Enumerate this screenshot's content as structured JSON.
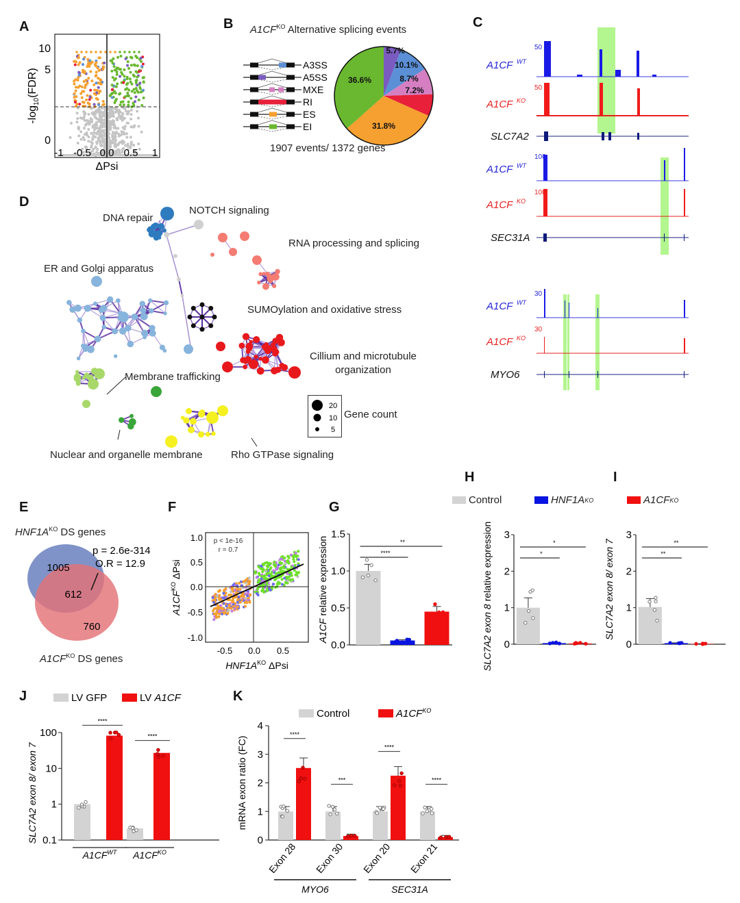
{
  "panels": {
    "A": {
      "label": "A",
      "xlabel": "ΔPsi",
      "ylabel": "-log10(FDR)",
      "yticks": [
        "0",
        "5",
        "10"
      ],
      "xticks": [
        "-1",
        "-0.5",
        "0.0",
        "0.5",
        "1"
      ]
    },
    "B": {
      "label": "B",
      "title_gene": "A1CF",
      "title_sup": "KO",
      "title_rest": " Alternative splicing events",
      "footer": "1907 events/ 1372 genes",
      "legend": [
        {
          "name": "A3SS",
          "color": "#5b8fd6"
        },
        {
          "name": "A5SS",
          "color": "#7a5cc0"
        },
        {
          "name": "MXE",
          "color": "#d57fc2"
        },
        {
          "name": "RI",
          "color": "#e8203a"
        },
        {
          "name": "ES",
          "color": "#f5a030"
        },
        {
          "name": "EI",
          "color": "#69b82f"
        }
      ]
    },
    "C": {
      "label": "C",
      "tracks": [
        {
          "gene": "SLC7A2",
          "wt_scale": "50",
          "ko_scale": "50"
        },
        {
          "gene": "SEC31A",
          "wt_scale": "100",
          "ko_scale": "100"
        },
        {
          "gene": "MYO6",
          "wt_scale": "30",
          "ko_scale": "30"
        }
      ],
      "wt_label": "A1CF",
      "wt_sup": "WT",
      "ko_label": "A1CF",
      "ko_sup": "KO"
    },
    "D": {
      "label": "D",
      "clusters": [
        {
          "name": "DNA repair",
          "color": "#2f7bbf"
        },
        {
          "name": "NOTCH signaling",
          "color": "#d0d0d0"
        },
        {
          "name": "RNA processing and splicing",
          "color": "#f47c72"
        },
        {
          "name": "ER and Golgi apparatus",
          "color": "#87b4dc"
        },
        {
          "name": "SUMOylation and oxidative stress",
          "color": "#111111"
        },
        {
          "name": "Cillium and microtubule",
          "name2": "organization",
          "color": "#e8191c"
        },
        {
          "name": "Membrane trafficking",
          "color": "#a8d86a"
        },
        {
          "name": "Nuclear and organelle membrane",
          "color": "#3aa63a"
        },
        {
          "name": "Rho GTPase signaling",
          "color": "#f5f020"
        }
      ],
      "legend_title": "Gene count",
      "legend_sizes": [
        "20",
        "10",
        "5"
      ]
    },
    "E": {
      "label": "E",
      "set1_gene": "HNF1A",
      "set1_sup": "KO",
      "set1_rest": " DS genes",
      "set2_gene": "A1CF",
      "set2_sup": "KO",
      "set2_rest": " DS genes",
      "only1": "1005",
      "both": "612",
      "only2": "760",
      "p": "p = 2.6e-314",
      "or": "O.R = 12.9"
    },
    "F": {
      "label": "F",
      "stat1": "p < 1e-16",
      "stat2": "r = 0.7",
      "xlabel_gene": "HNF1A",
      "xlabel_sup": "KO",
      "xlabel_rest": " ΔPsi",
      "ylabel_gene": "A1CF",
      "ylabel_sup": "KO",
      "ylabel_rest": " ΔPsi",
      "xticks": [
        "-0.5",
        "0.0",
        "0.5"
      ],
      "yticks": [
        "1.0",
        "0.5",
        "0.0",
        "-0.5",
        "-1.0"
      ]
    },
    "G": {
      "label": "G"
    },
    "H": {
      "label": "H"
    },
    "I": {
      "label": "I"
    },
    "J": {
      "label": "J"
    },
    "K": {
      "label": "K"
    }
  },
  "legend_GHI": [
    {
      "name": "Control",
      "italic": false,
      "sup": "",
      "color": "#d3d3d3"
    },
    {
      "name": "HNF1A",
      "italic": true,
      "sup": "KO",
      "color": "#0a14e0"
    },
    {
      "name": "A1CF",
      "italic": true,
      "sup": "KO",
      "color": "#f01010"
    }
  ],
  "chart_data": [
    {
      "panel": "B",
      "type": "pie",
      "title": "A1CF KO Alternative splicing events",
      "slices": [
        {
          "name": "A5SS",
          "value": 5.7,
          "color": "#7a5cc0"
        },
        {
          "name": "A3SS",
          "value": 10.1,
          "color": "#5b8fd6"
        },
        {
          "name": "MXE",
          "value": 8.7,
          "color": "#d57fc2"
        },
        {
          "name": "RI",
          "value": 7.2,
          "color": "#e8203a"
        },
        {
          "name": "ES",
          "value": 31.8,
          "color": "#f5a030"
        },
        {
          "name": "EI",
          "value": 36.6,
          "color": "#69b82f"
        }
      ],
      "labels": [
        "5.7%",
        "10.1%",
        "8.7%",
        "7.2%",
        "31.8%",
        "36.6%"
      ]
    },
    {
      "panel": "G",
      "type": "bar",
      "ylabel": "A1CF relative expression",
      "ylim": [
        0,
        1.5
      ],
      "yticks": [
        "0.0",
        "0.5",
        "1.0",
        "1.5"
      ],
      "categories": [
        "Control",
        "HNF1A KO",
        "A1CF KO"
      ],
      "values": [
        1.0,
        0.06,
        0.45
      ],
      "errors": [
        0.09,
        0.01,
        0.07
      ],
      "colors": [
        "#d3d3d3",
        "#0a14e0",
        "#f01010"
      ],
      "sig": [
        {
          "from": 0,
          "to": 1,
          "label": "****"
        },
        {
          "from": 0,
          "to": 2,
          "label": "**"
        }
      ]
    },
    {
      "panel": "H",
      "type": "bar",
      "ylabel": "SLC7A2 exon 8 relative expression",
      "ylim": [
        0,
        3
      ],
      "yticks": [
        "0",
        "1",
        "2",
        "3"
      ],
      "categories": [
        "Control",
        "HNF1A KO",
        "A1CF KO"
      ],
      "values": [
        1.0,
        0.03,
        0.02
      ],
      "errors": [
        0.27,
        0.01,
        0.01
      ],
      "colors": [
        "#d3d3d3",
        "#0a14e0",
        "#f01010"
      ],
      "sig": [
        {
          "from": 0,
          "to": 1,
          "label": "*"
        },
        {
          "from": 0,
          "to": 2,
          "label": "*"
        }
      ]
    },
    {
      "panel": "I",
      "type": "bar",
      "ylabel": "SLC7A2 exon 8/ exon 7",
      "ylim": [
        0,
        3
      ],
      "yticks": [
        "0",
        "1",
        "2",
        "3"
      ],
      "categories": [
        "Control",
        "HNF1A KO",
        "A1CF KO"
      ],
      "values": [
        1.02,
        0.03,
        0.01
      ],
      "errors": [
        0.23,
        0.01,
        0.005
      ],
      "colors": [
        "#d3d3d3",
        "#0a14e0",
        "#f01010"
      ],
      "sig": [
        {
          "from": 0,
          "to": 1,
          "label": "**"
        },
        {
          "from": 0,
          "to": 2,
          "label": "**"
        }
      ]
    },
    {
      "panel": "J",
      "type": "bar",
      "scale": "log",
      "ylabel": "SLC7A2 exon 8/ exon 7",
      "ylim": [
        0.1,
        100
      ],
      "yticks": [
        "0.1",
        "1",
        "10",
        "100"
      ],
      "groups": [
        "A1CF WT",
        "A1CF KO"
      ],
      "series": [
        {
          "name": "LV GFP",
          "color": "#d3d3d3",
          "values": [
            1.0,
            0.21
          ]
        },
        {
          "name": "LV A1CF",
          "color": "#f01010",
          "values": [
            82,
            27
          ]
        }
      ],
      "sig": [
        "****",
        "****"
      ]
    },
    {
      "panel": "K",
      "type": "bar",
      "ylabel": "mRNA exon ratio (FC)",
      "ylim": [
        0,
        4
      ],
      "yticks": [
        "0",
        "1",
        "2",
        "3",
        "4"
      ],
      "categories": [
        "Exon 28",
        "Exon 30",
        "Exon 20",
        "Exon 21"
      ],
      "gene_groups": [
        "MYO6",
        "SEC31A"
      ],
      "series": [
        {
          "name": "Control",
          "color": "#d3d3d3",
          "values": [
            1.0,
            1.0,
            1.0,
            1.0
          ]
        },
        {
          "name": "A1CF KO",
          "color": "#f01010",
          "values": [
            2.52,
            0.14,
            2.25,
            0.1
          ]
        }
      ],
      "sig": [
        "****",
        "***",
        "****",
        "****"
      ]
    }
  ]
}
